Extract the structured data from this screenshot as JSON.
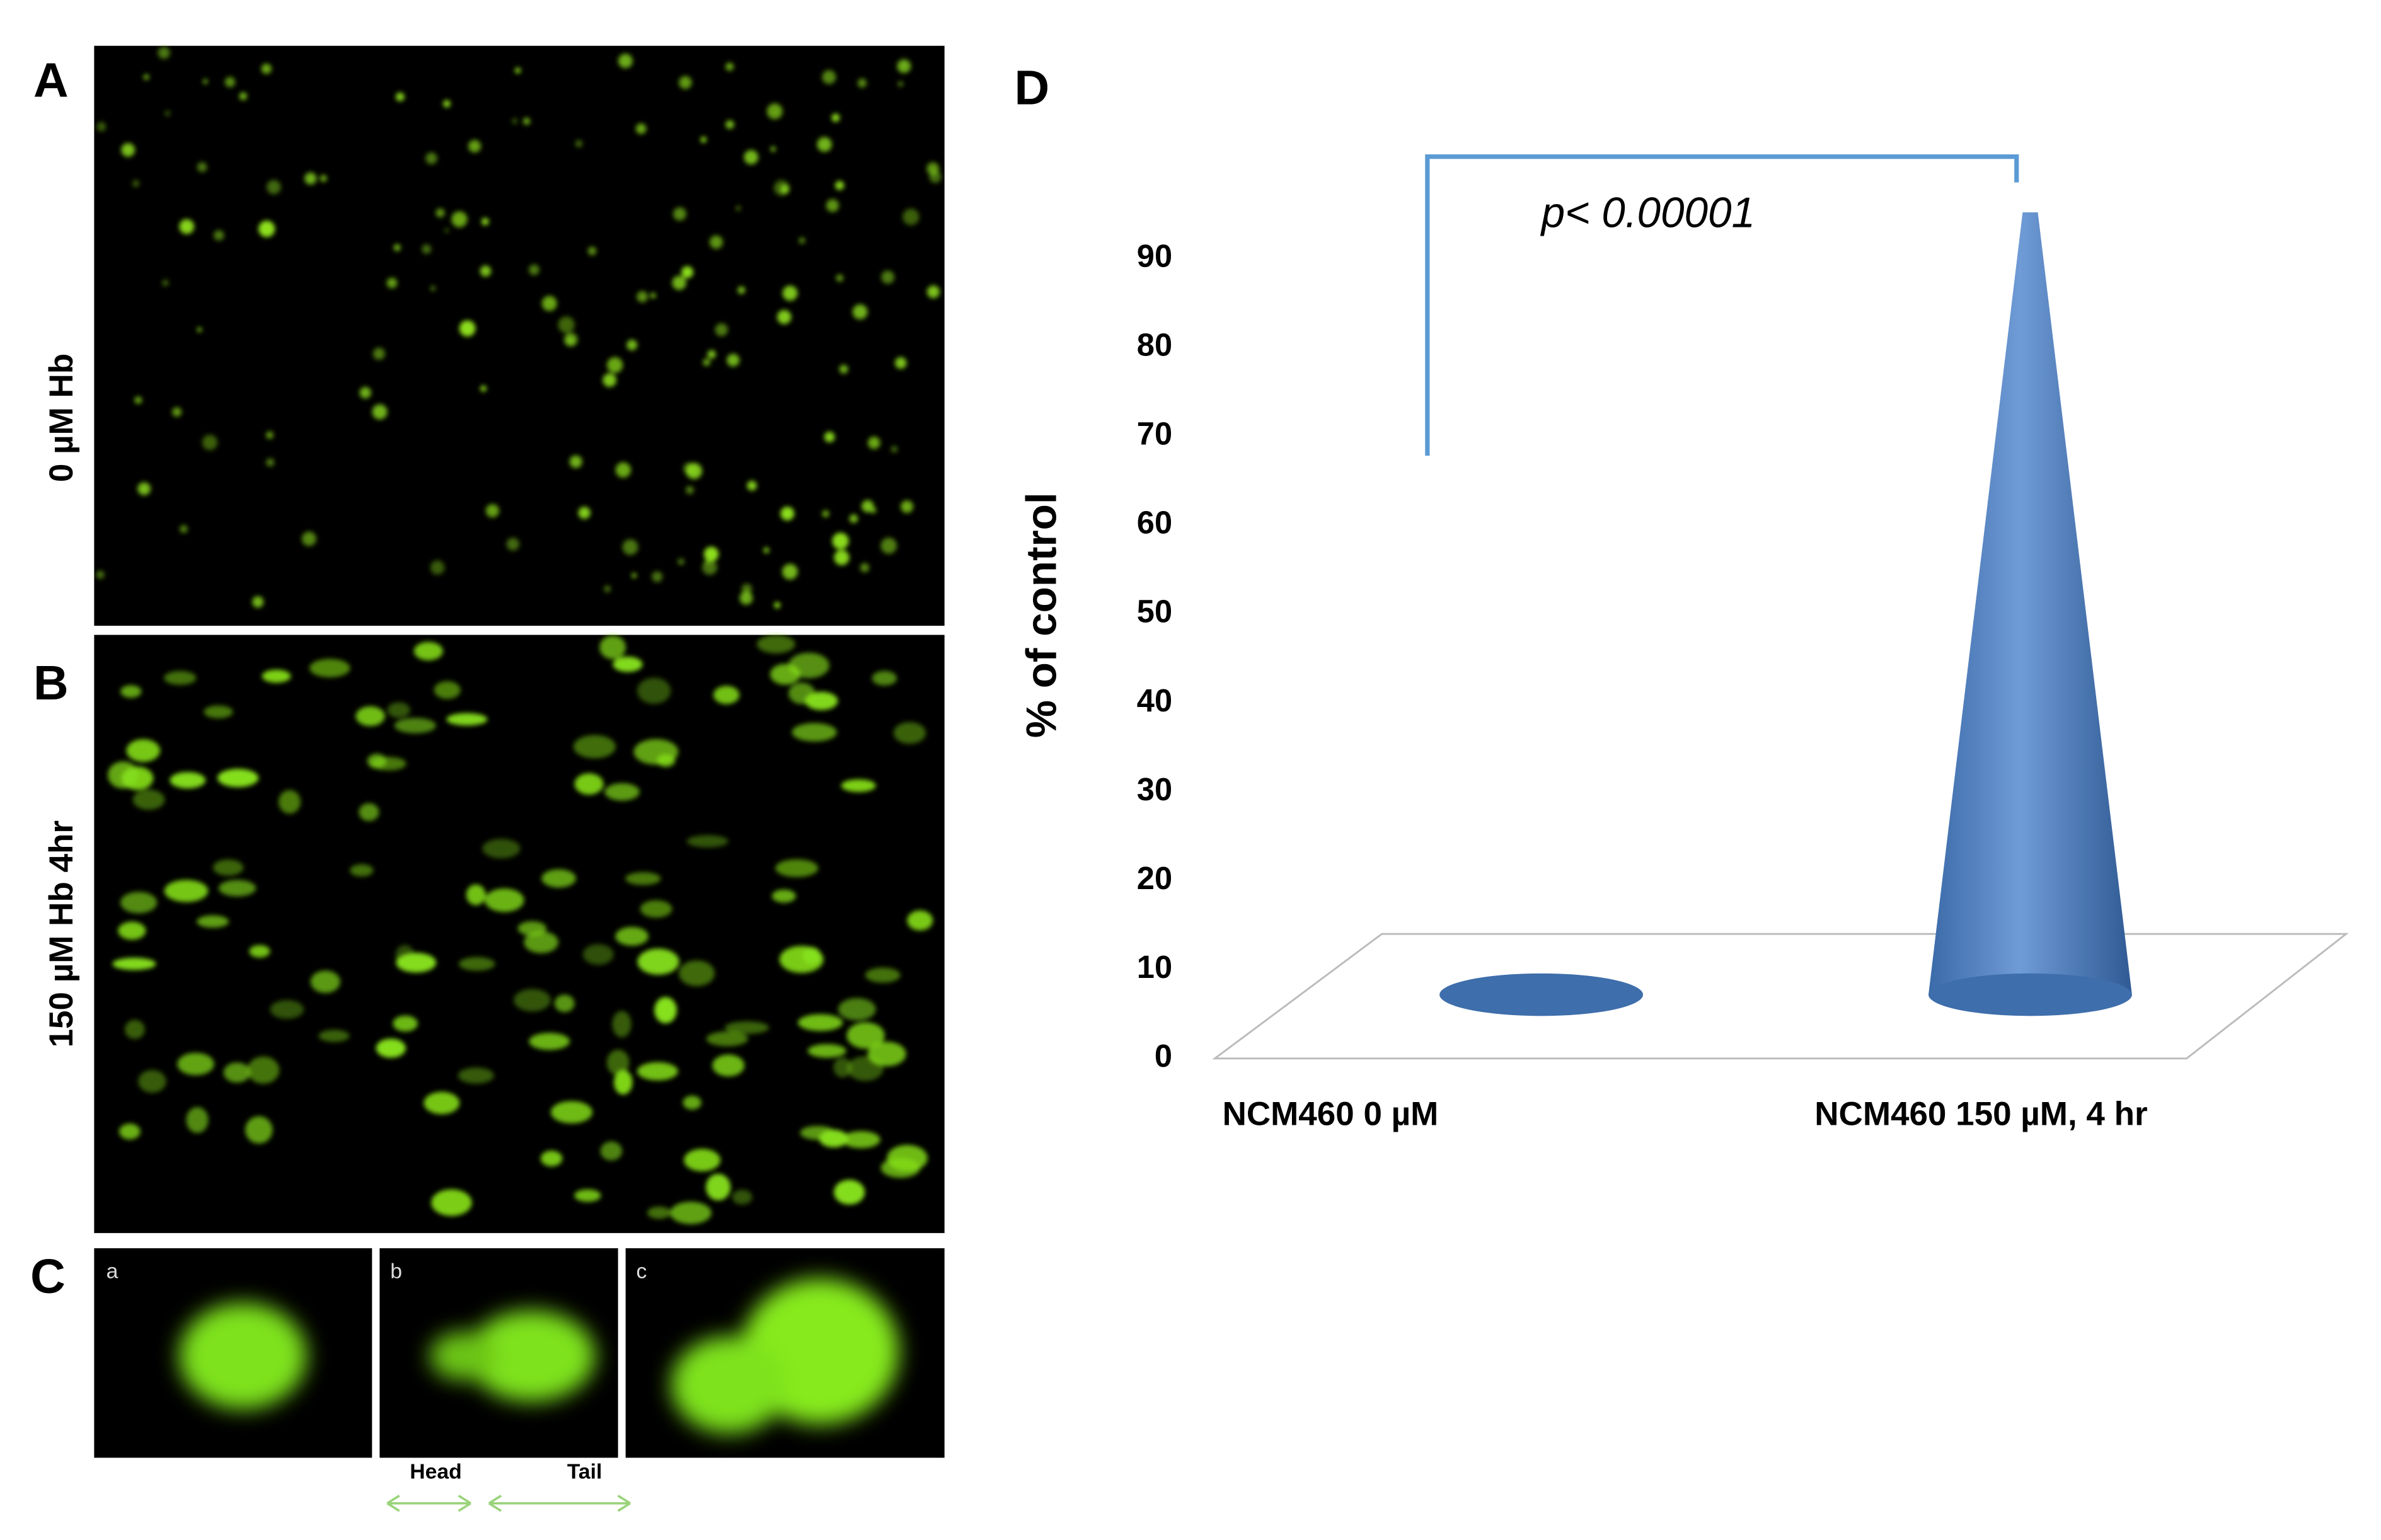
{
  "panels": {
    "a_label": "A",
    "b_label": "B",
    "c_label": "C",
    "d_label": "D",
    "a_side": "0 µM Hb",
    "b_side": "150 µM Hb 4hr",
    "c_sub": [
      "a",
      "b",
      "c"
    ],
    "head": "Head",
    "tail": "Tail"
  },
  "chart_data": {
    "type": "cone",
    "ylabel": "% of control",
    "annotation": "p< 0.00001",
    "categories": [
      "NCM460 0 µM",
      "NCM460 150 µM, 4 hr"
    ],
    "values": [
      1,
      88
    ],
    "color": "#4f81bd",
    "ylim": [
      0,
      90
    ],
    "yticks": [
      0,
      10,
      20,
      30,
      40,
      50,
      60,
      70,
      80,
      90
    ],
    "grid": false
  }
}
